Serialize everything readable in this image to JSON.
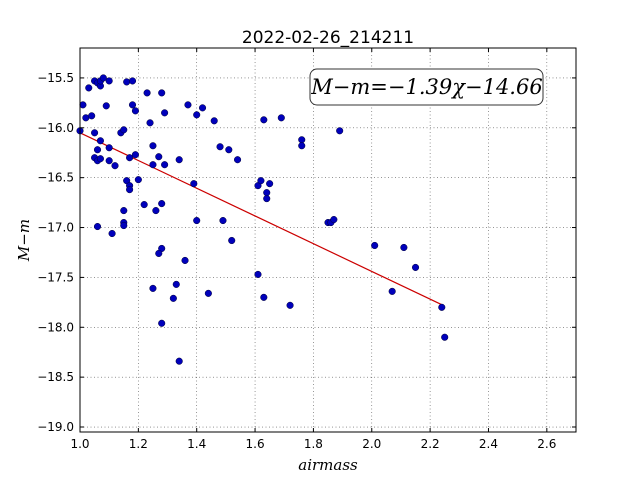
{
  "chart_data": {
    "type": "scatter",
    "title": "2022-02-26_214211",
    "xlabel": "airmass",
    "ylabel": "M−m",
    "xlim": [
      1.0,
      2.7
    ],
    "ylim": [
      -19.05,
      -15.2
    ],
    "y_inverted": true,
    "grid": true,
    "xticks": [
      1.0,
      1.2,
      1.4,
      1.6,
      1.8,
      2.0,
      2.2,
      2.4,
      2.6
    ],
    "xtick_labels": [
      "1.0",
      "1.2",
      "1.4",
      "1.6",
      "1.8",
      "2.0",
      "2.2",
      "2.4",
      "2.6"
    ],
    "yticks": [
      -15.5,
      -16.0,
      -16.5,
      -17.0,
      -17.5,
      -18.0,
      -18.5,
      -19.0
    ],
    "ytick_labels": [
      "−15.5",
      "−16.0",
      "−16.5",
      "−17.0",
      "−17.5",
      "−18.0",
      "−18.5",
      "−19.0"
    ],
    "annotation": "M−m=−1.39χ−14.66",
    "fit": {
      "slope": -1.39,
      "intercept": -14.66,
      "x_range": [
        1.0,
        2.24
      ],
      "color": "#cc0000"
    },
    "marker_color": "#0000bb",
    "points": [
      [
        1.0,
        -16.03
      ],
      [
        1.01,
        -15.77
      ],
      [
        1.02,
        -15.9
      ],
      [
        1.03,
        -15.6
      ],
      [
        1.04,
        -15.88
      ],
      [
        1.05,
        -15.53
      ],
      [
        1.06,
        -15.55
      ],
      [
        1.07,
        -15.58
      ],
      [
        1.07,
        -15.53
      ],
      [
        1.08,
        -15.5
      ],
      [
        1.1,
        -15.53
      ],
      [
        1.09,
        -15.78
      ],
      [
        1.05,
        -16.05
      ],
      [
        1.07,
        -16.13
      ],
      [
        1.06,
        -16.22
      ],
      [
        1.05,
        -16.3
      ],
      [
        1.06,
        -16.33
      ],
      [
        1.07,
        -16.31
      ],
      [
        1.1,
        -16.33
      ],
      [
        1.1,
        -16.2
      ],
      [
        1.12,
        -16.38
      ],
      [
        1.14,
        -16.05
      ],
      [
        1.15,
        -16.02
      ],
      [
        1.16,
        -15.54
      ],
      [
        1.18,
        -15.53
      ],
      [
        1.18,
        -15.77
      ],
      [
        1.19,
        -15.83
      ],
      [
        1.17,
        -16.3
      ],
      [
        1.19,
        -16.27
      ],
      [
        1.16,
        -16.53
      ],
      [
        1.17,
        -16.58
      ],
      [
        1.17,
        -16.62
      ],
      [
        1.2,
        -16.52
      ],
      [
        1.15,
        -16.83
      ],
      [
        1.15,
        -16.95
      ],
      [
        1.15,
        -16.98
      ],
      [
        1.06,
        -16.99
      ],
      [
        1.11,
        -17.06
      ],
      [
        1.22,
        -16.77
      ],
      [
        1.23,
        -15.65
      ],
      [
        1.24,
        -15.95
      ],
      [
        1.25,
        -16.18
      ],
      [
        1.25,
        -16.37
      ],
      [
        1.27,
        -16.29
      ],
      [
        1.28,
        -15.65
      ],
      [
        1.29,
        -15.85
      ],
      [
        1.29,
        -16.37
      ],
      [
        1.26,
        -16.83
      ],
      [
        1.28,
        -16.76
      ],
      [
        1.28,
        -17.21
      ],
      [
        1.27,
        -17.26
      ],
      [
        1.25,
        -17.61
      ],
      [
        1.32,
        -17.71
      ],
      [
        1.33,
        -17.57
      ],
      [
        1.28,
        -17.96
      ],
      [
        1.34,
        -18.34
      ],
      [
        1.34,
        -16.32
      ],
      [
        1.36,
        -17.33
      ],
      [
        1.39,
        -16.56
      ],
      [
        1.4,
        -16.93
      ],
      [
        1.37,
        -15.77
      ],
      [
        1.4,
        -15.87
      ],
      [
        1.42,
        -15.8
      ],
      [
        1.46,
        -15.93
      ],
      [
        1.48,
        -16.19
      ],
      [
        1.51,
        -16.22
      ],
      [
        1.54,
        -16.32
      ],
      [
        1.49,
        -16.93
      ],
      [
        1.52,
        -17.13
      ],
      [
        1.44,
        -17.66
      ],
      [
        1.61,
        -16.58
      ],
      [
        1.62,
        -16.53
      ],
      [
        1.64,
        -16.65
      ],
      [
        1.65,
        -16.56
      ],
      [
        1.64,
        -16.71
      ],
      [
        1.63,
        -15.92
      ],
      [
        1.69,
        -15.9
      ],
      [
        1.61,
        -17.47
      ],
      [
        1.63,
        -17.7
      ],
      [
        1.72,
        -17.78
      ],
      [
        1.76,
        -16.12
      ],
      [
        1.76,
        -16.18
      ],
      [
        1.89,
        -16.03
      ],
      [
        1.85,
        -16.95
      ],
      [
        1.86,
        -16.95
      ],
      [
        1.87,
        -16.92
      ],
      [
        2.01,
        -17.18
      ],
      [
        2.07,
        -17.64
      ],
      [
        2.11,
        -17.2
      ],
      [
        2.15,
        -17.4
      ],
      [
        2.24,
        -17.8
      ],
      [
        2.25,
        -18.1
      ]
    ]
  }
}
